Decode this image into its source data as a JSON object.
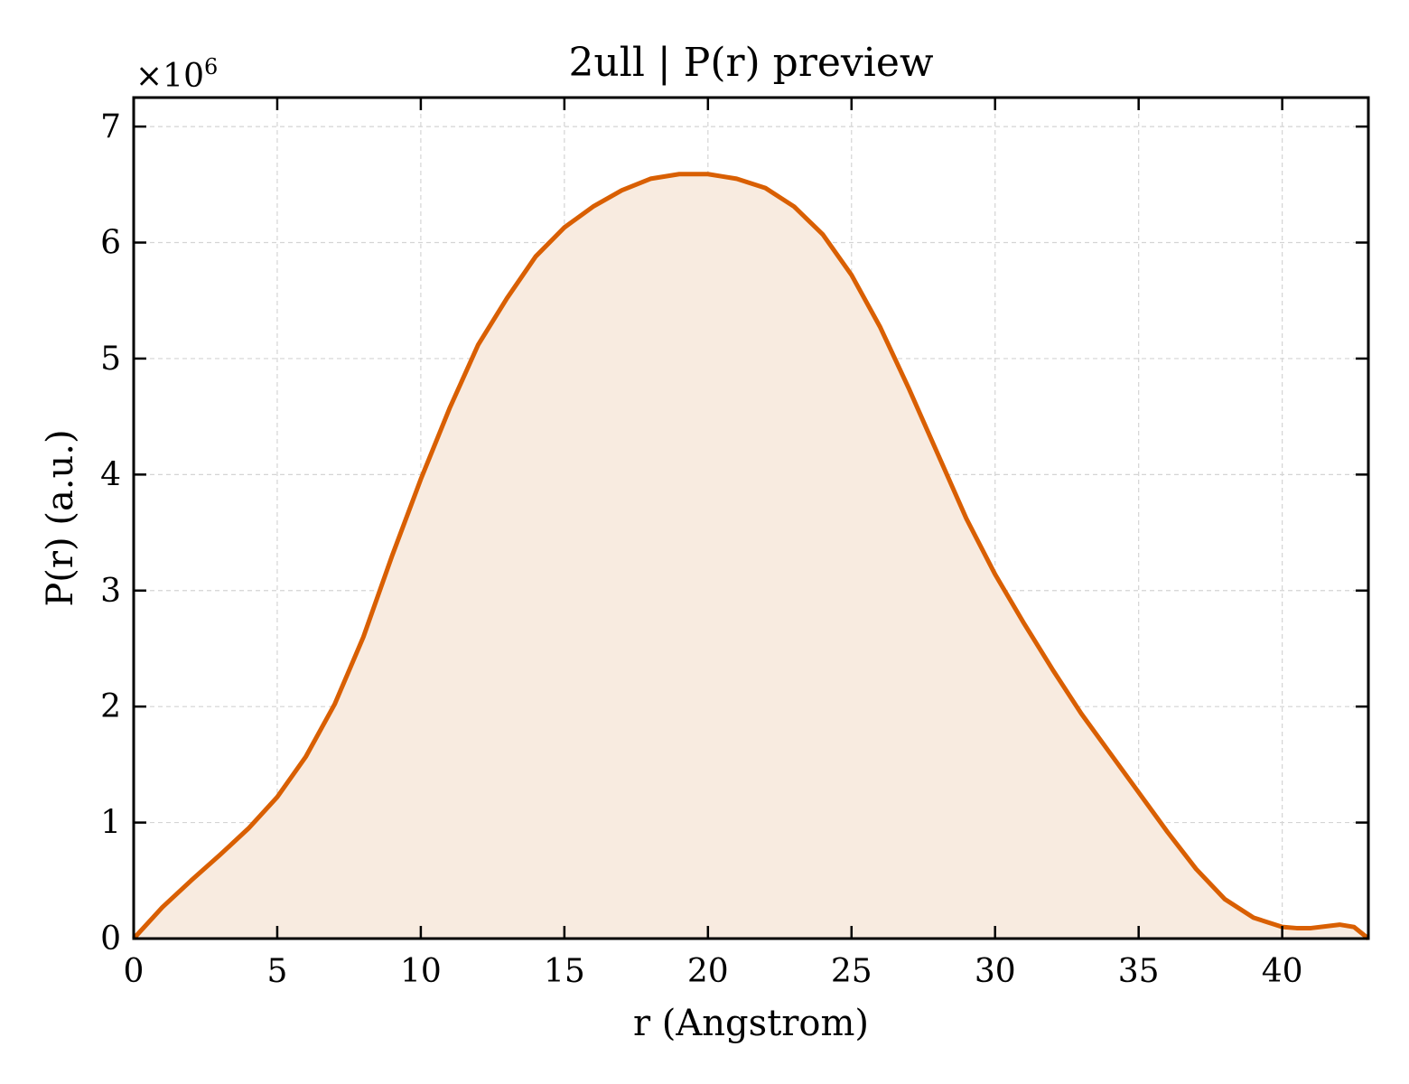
{
  "chart_data": {
    "type": "area",
    "title": "2ull | P(r) preview",
    "xlabel": "r (Angstrom)",
    "ylabel": "P(r) (a.u.)",
    "y_offset_base": "×10",
    "y_offset_exponent": "6",
    "xlim": [
      0,
      43
    ],
    "ylim": [
      0,
      7.25
    ],
    "y_scale_multiplier": 1000000,
    "x_ticks": [
      0,
      5,
      10,
      15,
      20,
      25,
      30,
      35,
      40
    ],
    "x_tick_labels": [
      "0",
      "5",
      "10",
      "15",
      "20",
      "25",
      "30",
      "35",
      "40"
    ],
    "y_ticks": [
      0,
      1,
      2,
      3,
      4,
      5,
      6,
      7
    ],
    "y_tick_labels": [
      "0",
      "1",
      "2",
      "3",
      "4",
      "5",
      "6",
      "7"
    ],
    "grid": true,
    "series": [
      {
        "x": [
          0,
          1,
          2,
          3,
          4,
          5,
          6,
          7,
          8,
          9,
          10,
          11,
          12,
          13,
          14,
          15,
          16,
          17,
          18,
          19,
          20,
          20.5,
          21,
          22,
          23,
          24,
          25,
          26,
          27,
          28,
          29,
          30,
          31,
          32,
          33,
          34,
          35,
          36,
          37,
          38,
          39,
          40,
          40.5,
          41,
          42,
          42.5,
          43
        ],
        "y": [
          0,
          0.27,
          0.5,
          0.72,
          0.95,
          1.22,
          1.57,
          2.02,
          2.6,
          3.3,
          3.96,
          4.57,
          5.12,
          5.52,
          5.88,
          6.13,
          6.31,
          6.45,
          6.55,
          6.59,
          6.59,
          6.57,
          6.55,
          6.47,
          6.31,
          6.07,
          5.72,
          5.27,
          4.74,
          4.18,
          3.62,
          3.14,
          2.72,
          2.32,
          1.94,
          1.6,
          1.26,
          0.92,
          0.6,
          0.34,
          0.18,
          0.1,
          0.09,
          0.09,
          0.12,
          0.1,
          0
        ]
      }
    ],
    "colors": {
      "line": "#d95f02",
      "fill": "#f8ebe0",
      "grid": "#d4d4d4",
      "axis": "#000000"
    }
  }
}
